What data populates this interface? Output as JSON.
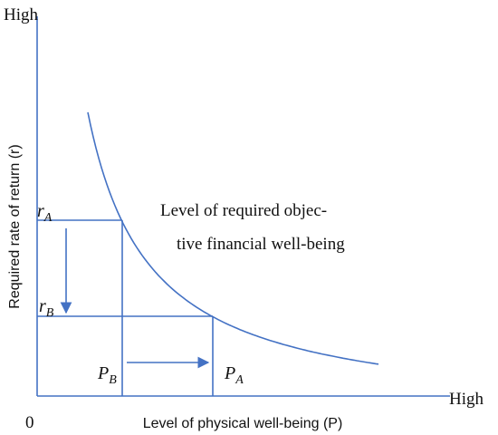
{
  "y_axis": {
    "end_label": "High",
    "title": "Required rate of return (r)"
  },
  "x_axis": {
    "end_label": "High",
    "origin_label": "0",
    "title": "Level of physical well-being (P)"
  },
  "points": {
    "r_a": {
      "main": "r",
      "sub": "A"
    },
    "r_b": {
      "main": "r",
      "sub": "B"
    },
    "p_b": {
      "main": "P",
      "sub": "B"
    },
    "p_a": {
      "main": "P",
      "sub": "A"
    }
  },
  "curve_label": [
    "Level of required objec-",
    "tive financial well-being"
  ]
}
